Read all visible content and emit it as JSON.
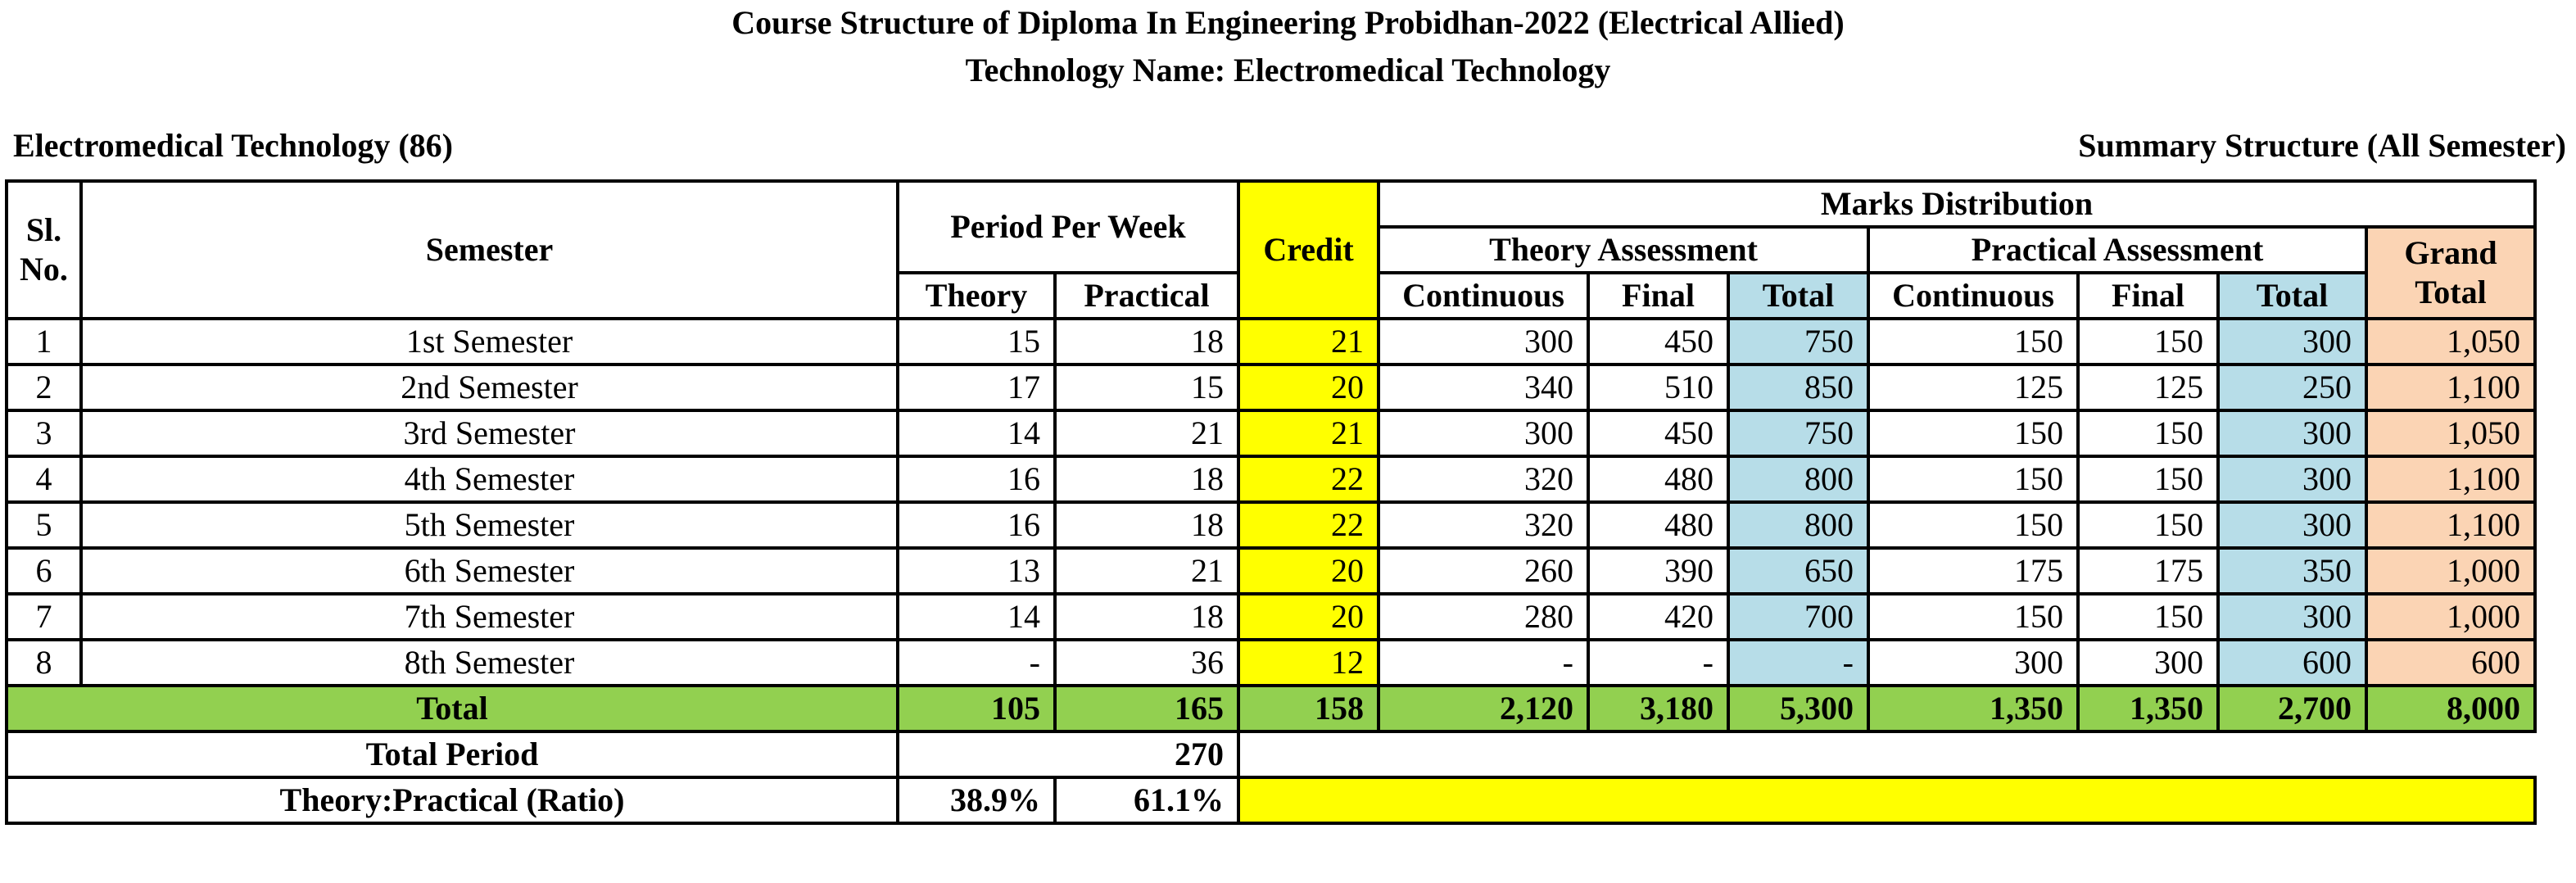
{
  "title_line1": "Course Structure of Diploma In Engineering Probidhan-2022 (Electrical Allied)",
  "title_line2": "Technology Name: Electromedical Technology",
  "technology_label": "Electromedical Technology (86)",
  "summary_label": "Summary Structure (All Semester)",
  "headers": {
    "sl_no": "Sl. No.",
    "semester": "Semester",
    "period_per_week": "Period Per Week",
    "theory": "Theory",
    "practical": "Practical",
    "credit": "Credit",
    "marks_distribution": "Marks Distribution",
    "theory_assessment": "Theory Assessment",
    "practical_assessment": "Practical Assessment",
    "continuous": "Continuous",
    "final": "Final",
    "total": "Total",
    "grand_total": "Grand Total"
  },
  "rows": [
    {
      "sl": "1",
      "semester": "1st Semester",
      "theory": "15",
      "practical": "18",
      "credit": "21",
      "t_cont": "300",
      "t_final": "450",
      "t_total": "750",
      "p_cont": "150",
      "p_final": "150",
      "p_total": "300",
      "grand": "1,050"
    },
    {
      "sl": "2",
      "semester": "2nd Semester",
      "theory": "17",
      "practical": "15",
      "credit": "20",
      "t_cont": "340",
      "t_final": "510",
      "t_total": "850",
      "p_cont": "125",
      "p_final": "125",
      "p_total": "250",
      "grand": "1,100"
    },
    {
      "sl": "3",
      "semester": "3rd Semester",
      "theory": "14",
      "practical": "21",
      "credit": "21",
      "t_cont": "300",
      "t_final": "450",
      "t_total": "750",
      "p_cont": "150",
      "p_final": "150",
      "p_total": "300",
      "grand": "1,050"
    },
    {
      "sl": "4",
      "semester": "4th Semester",
      "theory": "16",
      "practical": "18",
      "credit": "22",
      "t_cont": "320",
      "t_final": "480",
      "t_total": "800",
      "p_cont": "150",
      "p_final": "150",
      "p_total": "300",
      "grand": "1,100"
    },
    {
      "sl": "5",
      "semester": "5th Semester",
      "theory": "16",
      "practical": "18",
      "credit": "22",
      "t_cont": "320",
      "t_final": "480",
      "t_total": "800",
      "p_cont": "150",
      "p_final": "150",
      "p_total": "300",
      "grand": "1,100"
    },
    {
      "sl": "6",
      "semester": "6th Semester",
      "theory": "13",
      "practical": "21",
      "credit": "20",
      "t_cont": "260",
      "t_final": "390",
      "t_total": "650",
      "p_cont": "175",
      "p_final": "175",
      "p_total": "350",
      "grand": "1,000"
    },
    {
      "sl": "7",
      "semester": "7th Semester",
      "theory": "14",
      "practical": "18",
      "credit": "20",
      "t_cont": "280",
      "t_final": "420",
      "t_total": "700",
      "p_cont": "150",
      "p_final": "150",
      "p_total": "300",
      "grand": "1,000"
    },
    {
      "sl": "8",
      "semester": "8th Semester",
      "theory": "-",
      "practical": "36",
      "credit": "12",
      "t_cont": "-",
      "t_final": "-",
      "t_total": "-",
      "p_cont": "300",
      "p_final": "300",
      "p_total": "600",
      "grand": "600"
    }
  ],
  "total_row": {
    "label": "Total",
    "theory": "105",
    "practical": "165",
    "credit": "158",
    "t_cont": "2,120",
    "t_final": "3,180",
    "t_total": "5,300",
    "p_cont": "1,350",
    "p_final": "1,350",
    "p_total": "2,700",
    "grand": "8,000"
  },
  "total_period": {
    "label": "Total Period",
    "value": "270"
  },
  "ratio": {
    "label": "Theory:Practical (Ratio)",
    "theory": "38.9%",
    "practical": "61.1%"
  },
  "colors": {
    "credit": "#ffff00",
    "assessment_total": "#b7dde8",
    "grand_total": "#fbd4b4",
    "total_row": "#92d050"
  }
}
